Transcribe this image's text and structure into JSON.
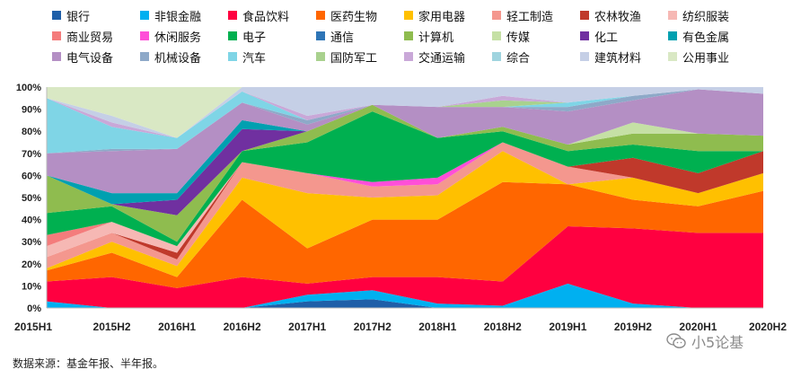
{
  "chart_data": {
    "type": "area",
    "stacked": true,
    "normalized": true,
    "x": [
      "2015H1",
      "2015H2",
      "2016H1",
      "2016H2",
      "2017H1",
      "2017H2",
      "2018H1",
      "2018H2",
      "2019H1",
      "2019H2",
      "2020H1",
      "2020H2"
    ],
    "ylim": [
      0,
      100
    ],
    "yticks": [
      "0%",
      "10%",
      "20%",
      "30%",
      "40%",
      "50%",
      "60%",
      "70%",
      "80%",
      "90%",
      "100%"
    ],
    "grid": false,
    "legend_position": "top",
    "series": [
      {
        "name": "银行",
        "color": "#1f5fa8",
        "values": [
          0,
          0,
          0,
          0,
          3,
          4,
          0,
          0,
          0,
          0,
          0,
          0
        ]
      },
      {
        "name": "非银金融",
        "color": "#00b0f0",
        "values": [
          3,
          0,
          0,
          0,
          3,
          4,
          2,
          1,
          11,
          2,
          0,
          0
        ]
      },
      {
        "name": "食品饮料",
        "color": "#ff0040",
        "values": [
          9,
          14,
          9,
          14,
          5,
          6,
          12,
          11,
          26,
          34,
          34,
          34
        ]
      },
      {
        "name": "医药生物",
        "color": "#ff6600",
        "values": [
          5,
          11,
          5,
          35,
          16,
          26,
          26,
          45,
          19,
          13,
          12,
          19
        ]
      },
      {
        "name": "家用电器",
        "color": "#ffc000",
        "values": [
          1,
          5,
          5,
          10,
          25,
          10,
          11,
          14,
          0,
          10,
          6,
          8
        ]
      },
      {
        "name": "轻工制造",
        "color": "#f4978e",
        "values": [
          5,
          4,
          3,
          7,
          9,
          5,
          5,
          4,
          8,
          0,
          0,
          0
        ]
      },
      {
        "name": "农林牧渔",
        "color": "#c0392b",
        "values": [
          0,
          0,
          3,
          0,
          0,
          0,
          0,
          0,
          0,
          9,
          9,
          10
        ]
      },
      {
        "name": "纺织服装",
        "color": "#f6b8b4",
        "values": [
          5,
          5,
          3,
          0,
          0,
          0,
          0,
          0,
          0,
          0,
          0,
          0
        ]
      },
      {
        "name": "商业贸易",
        "color": "#f47c7c",
        "values": [
          5,
          0,
          0,
          0,
          0,
          0,
          0,
          0,
          0,
          0,
          0,
          0
        ]
      },
      {
        "name": "休闲服务",
        "color": "#ff4fd8",
        "values": [
          0,
          0,
          0,
          0,
          0,
          2,
          3,
          0,
          0,
          0,
          0,
          0
        ]
      },
      {
        "name": "电子",
        "color": "#00b050",
        "values": [
          10,
          7,
          2,
          5,
          14,
          32,
          18,
          5,
          7,
          6,
          10,
          0
        ]
      },
      {
        "name": "通信",
        "color": "#2e75b6",
        "values": [
          0,
          0,
          0,
          0,
          0,
          0,
          0,
          0,
          0,
          0,
          0,
          0
        ]
      },
      {
        "name": "计算机",
        "color": "#8fbc4f",
        "values": [
          17,
          1,
          12,
          0,
          5,
          3,
          0,
          2,
          3,
          5,
          8,
          7
        ]
      },
      {
        "name": "传媒",
        "color": "#c5e0a5",
        "values": [
          0,
          0,
          0,
          0,
          0,
          0,
          0,
          0,
          0,
          5,
          0,
          0
        ]
      },
      {
        "name": "化工",
        "color": "#7030a0",
        "values": [
          0,
          0,
          7,
          10,
          0,
          0,
          0,
          0,
          0,
          0,
          0,
          0
        ]
      },
      {
        "name": "有色金属",
        "color": "#00a0b0",
        "values": [
          0,
          5,
          3,
          4,
          0,
          0,
          0,
          0,
          0,
          0,
          0,
          0
        ]
      },
      {
        "name": "电气设备",
        "color": "#b48fc4",
        "values": [
          10,
          19,
          20,
          8,
          3,
          0,
          14,
          9,
          15,
          10,
          20,
          19
        ]
      },
      {
        "name": "机械设备",
        "color": "#8ea9c8",
        "values": [
          0,
          1,
          0,
          0,
          2,
          0,
          0,
          0,
          2,
          2,
          0,
          0
        ]
      },
      {
        "name": "汽车",
        "color": "#7fd5e6",
        "values": [
          25,
          10,
          5,
          5,
          0,
          0,
          0,
          0,
          2,
          0,
          0,
          0
        ]
      },
      {
        "name": "国防军工",
        "color": "#a9d18e",
        "values": [
          0,
          0,
          0,
          0,
          0,
          0,
          0,
          3,
          0,
          0,
          0,
          0
        ]
      },
      {
        "name": "交通运输",
        "color": "#c9a8d8",
        "values": [
          0,
          2,
          0,
          0,
          2,
          0,
          0,
          2,
          0,
          0,
          0,
          0
        ]
      },
      {
        "name": "综合",
        "color": "#9fd4df",
        "values": [
          0,
          0,
          0,
          0,
          0,
          0,
          0,
          0,
          0,
          0,
          0,
          0
        ]
      },
      {
        "name": "建筑材料",
        "color": "#c5cfe6",
        "values": [
          0,
          3,
          0,
          2,
          13,
          8,
          9,
          4,
          7,
          4,
          1,
          3
        ]
      },
      {
        "name": "公用事业",
        "color": "#d9e8c4",
        "values": [
          5,
          13,
          23,
          0,
          0,
          0,
          0,
          0,
          0,
          0,
          0,
          0
        ]
      }
    ]
  },
  "source": "数据来源：基金年报、半年报。",
  "watermark": "小5论基"
}
